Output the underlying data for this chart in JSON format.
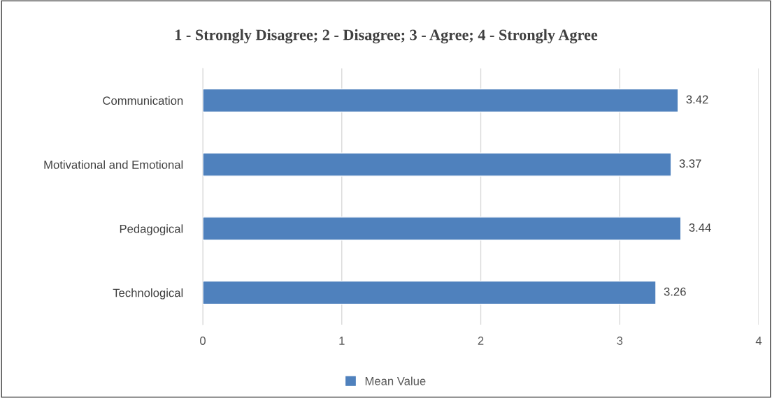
{
  "chart_data": {
    "type": "bar",
    "title": "1 - Strongly Disagree; 2 - Disagree; 3 - Agree; 4 - Strongly Agree",
    "orientation": "horizontal",
    "categories": [
      "Communication",
      "Motivational and Emotional",
      "Pedagogical",
      "Technological"
    ],
    "series": [
      {
        "name": "Mean Value",
        "color": "#4f81bd",
        "values": [
          3.42,
          3.37,
          3.44,
          3.26
        ]
      }
    ],
    "xlim": [
      0,
      4
    ],
    "xticks": [
      0,
      1,
      2,
      3,
      4
    ],
    "grid": "x",
    "data_labels": true,
    "legend": "bottom"
  }
}
